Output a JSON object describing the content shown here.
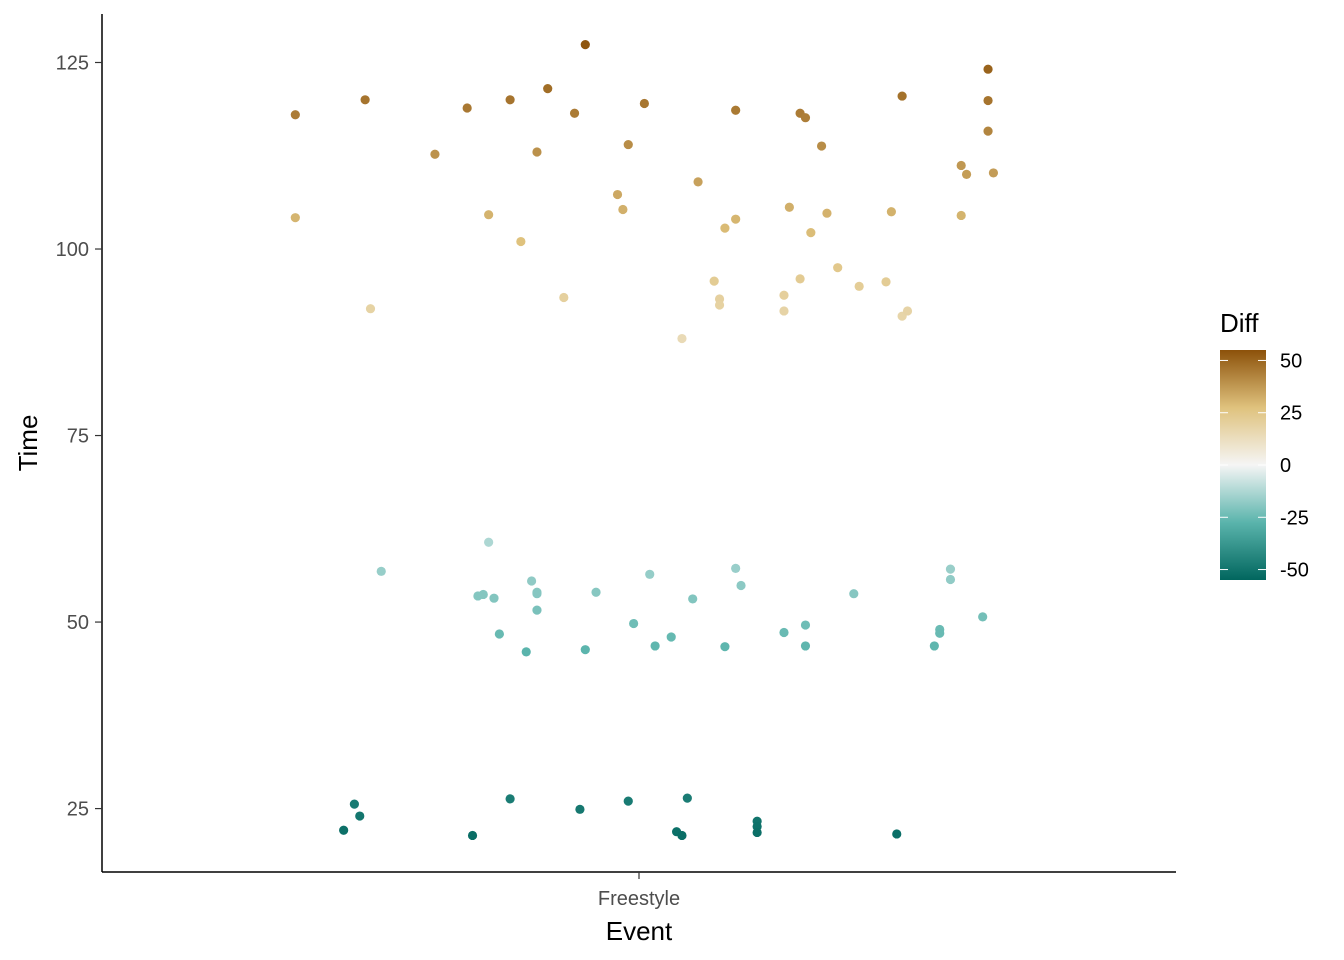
{
  "chart_data": {
    "type": "scatter",
    "title": "",
    "xlabel": "Event",
    "ylabel": "Time",
    "categories": [
      "Freestyle"
    ],
    "ylim": [
      16.5,
      131.5
    ],
    "yticks": [
      25,
      50,
      75,
      100,
      125
    ],
    "grid": false,
    "jitter": true,
    "legend": {
      "title": "Diff",
      "position": "right",
      "type": "colorbar",
      "ticks": [
        50,
        25,
        0,
        -25,
        -50
      ],
      "range": [
        -55,
        55
      ],
      "colors": {
        "low": "#01665e",
        "mid_low": "#5ab4ac",
        "zero": "#f5f5f5",
        "mid_high": "#dfc27d",
        "high": "#8c510a"
      }
    },
    "points": [
      {
        "x": -0.64,
        "y": 118.0
      },
      {
        "x": -0.51,
        "y": 120.0
      },
      {
        "x": -0.38,
        "y": 112.7
      },
      {
        "x": -0.32,
        "y": 118.9
      },
      {
        "x": -0.24,
        "y": 120.0
      },
      {
        "x": -0.17,
        "y": 121.5
      },
      {
        "x": -0.1,
        "y": 127.4
      },
      {
        "x": -0.12,
        "y": 118.2
      },
      {
        "x": -0.19,
        "y": 113.0
      },
      {
        "x": 0.01,
        "y": 119.5
      },
      {
        "x": -0.02,
        "y": 114.0
      },
      {
        "x": 0.18,
        "y": 118.6
      },
      {
        "x": 0.3,
        "y": 118.2
      },
      {
        "x": 0.31,
        "y": 117.6
      },
      {
        "x": 0.34,
        "y": 113.8
      },
      {
        "x": 0.49,
        "y": 120.5
      },
      {
        "x": 0.65,
        "y": 124.1
      },
      {
        "x": 0.65,
        "y": 119.9
      },
      {
        "x": 0.65,
        "y": 115.8
      },
      {
        "x": 0.6,
        "y": 111.2
      },
      {
        "x": 0.61,
        "y": 110.0
      },
      {
        "x": 0.66,
        "y": 110.2
      },
      {
        "x": -0.64,
        "y": 104.2
      },
      {
        "x": -0.28,
        "y": 104.6
      },
      {
        "x": -0.22,
        "y": 101.0
      },
      {
        "x": -0.04,
        "y": 107.3
      },
      {
        "x": -0.03,
        "y": 105.3
      },
      {
        "x": 0.11,
        "y": 109.0
      },
      {
        "x": 0.16,
        "y": 102.8
      },
      {
        "x": 0.18,
        "y": 104.0
      },
      {
        "x": 0.28,
        "y": 105.6
      },
      {
        "x": 0.32,
        "y": 102.2
      },
      {
        "x": 0.35,
        "y": 104.8
      },
      {
        "x": 0.47,
        "y": 105.0
      },
      {
        "x": 0.6,
        "y": 104.5
      },
      {
        "x": -0.5,
        "y": 92.0
      },
      {
        "x": -0.14,
        "y": 93.5
      },
      {
        "x": 0.08,
        "y": 88.0
      },
      {
        "x": 0.14,
        "y": 95.7
      },
      {
        "x": 0.15,
        "y": 93.3
      },
      {
        "x": 0.15,
        "y": 92.5
      },
      {
        "x": 0.27,
        "y": 93.8
      },
      {
        "x": 0.27,
        "y": 91.7
      },
      {
        "x": 0.3,
        "y": 96.0
      },
      {
        "x": 0.37,
        "y": 97.5
      },
      {
        "x": 0.41,
        "y": 95.0
      },
      {
        "x": 0.46,
        "y": 95.6
      },
      {
        "x": 0.49,
        "y": 91.0
      },
      {
        "x": 0.5,
        "y": 91.7
      },
      {
        "x": -0.48,
        "y": 56.8
      },
      {
        "x": -0.28,
        "y": 60.7
      },
      {
        "x": -0.3,
        "y": 53.5
      },
      {
        "x": -0.29,
        "y": 53.7
      },
      {
        "x": -0.27,
        "y": 53.2
      },
      {
        "x": -0.26,
        "y": 48.4
      },
      {
        "x": -0.2,
        "y": 55.5
      },
      {
        "x": -0.19,
        "y": 54.0
      },
      {
        "x": -0.19,
        "y": 53.8
      },
      {
        "x": -0.19,
        "y": 51.6
      },
      {
        "x": -0.21,
        "y": 46.0
      },
      {
        "x": -0.08,
        "y": 54.0
      },
      {
        "x": -0.1,
        "y": 46.3
      },
      {
        "x": -0.01,
        "y": 49.8
      },
      {
        "x": 0.02,
        "y": 56.4
      },
      {
        "x": 0.03,
        "y": 46.8
      },
      {
        "x": 0.06,
        "y": 48.0
      },
      {
        "x": 0.1,
        "y": 53.1
      },
      {
        "x": 0.16,
        "y": 46.7
      },
      {
        "x": 0.18,
        "y": 57.2
      },
      {
        "x": 0.19,
        "y": 54.9
      },
      {
        "x": 0.27,
        "y": 48.6
      },
      {
        "x": 0.31,
        "y": 49.6
      },
      {
        "x": 0.31,
        "y": 46.8
      },
      {
        "x": 0.4,
        "y": 53.8
      },
      {
        "x": 0.55,
        "y": 46.8
      },
      {
        "x": 0.56,
        "y": 49.0
      },
      {
        "x": 0.56,
        "y": 48.5
      },
      {
        "x": 0.58,
        "y": 55.7
      },
      {
        "x": 0.58,
        "y": 57.1
      },
      {
        "x": 0.64,
        "y": 50.7
      },
      {
        "x": -0.55,
        "y": 22.1
      },
      {
        "x": -0.53,
        "y": 25.6
      },
      {
        "x": -0.52,
        "y": 24.0
      },
      {
        "x": -0.31,
        "y": 21.4
      },
      {
        "x": -0.24,
        "y": 26.3
      },
      {
        "x": -0.11,
        "y": 24.9
      },
      {
        "x": -0.02,
        "y": 26.0
      },
      {
        "x": 0.07,
        "y": 21.9
      },
      {
        "x": 0.08,
        "y": 21.4
      },
      {
        "x": 0.09,
        "y": 26.4
      },
      {
        "x": 0.22,
        "y": 23.3
      },
      {
        "x": 0.22,
        "y": 22.6
      },
      {
        "x": 0.22,
        "y": 21.8
      },
      {
        "x": 0.48,
        "y": 21.6
      }
    ],
    "diff_offset": 73.5
  }
}
